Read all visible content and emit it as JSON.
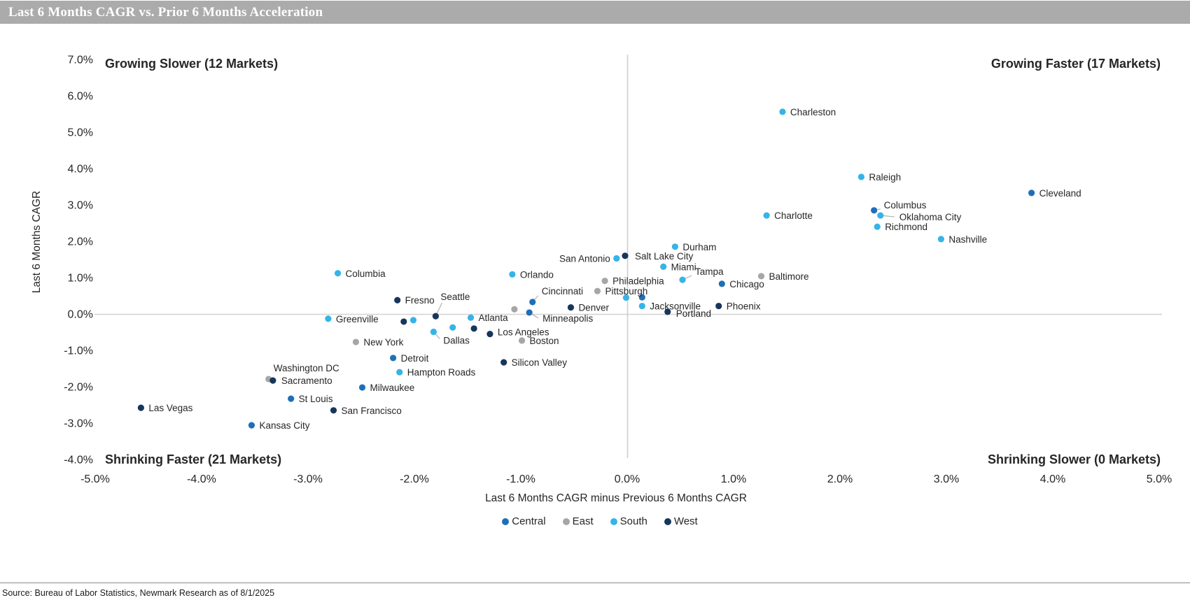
{
  "title_bar": {
    "text": "Last 6 Months CAGR vs. Prior 6 Months Acceleration",
    "bg": "#ABABAB",
    "fg": "#FFFFFF"
  },
  "source": {
    "text": "Source: Bureau of Labor Statistics, Newmark Research as of 8/1/2025"
  },
  "chart_data": {
    "type": "scatter",
    "title": "Last 6 Months CAGR vs. Prior 6 Months Acceleration",
    "xlabel": "Last 6 Months CAGR minus Previous 6 Months CAGR",
    "ylabel": "Last 6 Months CAGR",
    "xlim": [
      -5,
      5
    ],
    "ylim": [
      -4,
      7
    ],
    "grid": "only zero axes",
    "x_ticks": [
      {
        "v": -5,
        "label": "-5.0%"
      },
      {
        "v": -4,
        "label": "-4.0%"
      },
      {
        "v": -3,
        "label": "-3.0%"
      },
      {
        "v": -2,
        "label": "-2.0%"
      },
      {
        "v": -1,
        "label": "-1.0%"
      },
      {
        "v": 0,
        "label": "0.0%"
      },
      {
        "v": 1,
        "label": "1.0%"
      },
      {
        "v": 2,
        "label": "2.0%"
      },
      {
        "v": 3,
        "label": "3.0%"
      },
      {
        "v": 4,
        "label": "4.0%"
      },
      {
        "v": 5,
        "label": "5.0%"
      }
    ],
    "y_ticks": [
      {
        "v": 7,
        "label": "7.0%"
      },
      {
        "v": 6,
        "label": "6.0%"
      },
      {
        "v": 5,
        "label": "5.0%"
      },
      {
        "v": 4,
        "label": "4.0%"
      },
      {
        "v": 3,
        "label": "3.0%"
      },
      {
        "v": 2,
        "label": "2.0%"
      },
      {
        "v": 1,
        "label": "1.0%"
      },
      {
        "v": 0,
        "label": "0.0%"
      },
      {
        "v": -1,
        "label": "-1.0%"
      },
      {
        "v": -2,
        "label": "-2.0%"
      },
      {
        "v": -3,
        "label": "-3.0%"
      },
      {
        "v": -4,
        "label": "-4.0%"
      }
    ],
    "quadrant_labels": {
      "top_left": "Growing Slower (12 Markets)",
      "top_right": "Growing Faster (17 Markets)",
      "bottom_left": "Shrinking Faster (21 Markets)",
      "bottom_right": "Shrinking Slower (0 Markets)"
    },
    "legend": {
      "position": "bottom-center",
      "items": [
        {
          "name": "Central",
          "color": "#1F6FB8"
        },
        {
          "name": "East",
          "color": "#A6A6A6"
        },
        {
          "name": "South",
          "color": "#35B4E8"
        },
        {
          "name": "West",
          "color": "#17365D"
        }
      ]
    },
    "series": [
      {
        "name": "East",
        "color": "#A6A6A6",
        "points": [
          {
            "city": "Baltimore",
            "x": 1.26,
            "y": 1.04
          },
          {
            "city": "Philadelphia",
            "x": -0.21,
            "y": 0.91
          },
          {
            "city": "Pittsburgh",
            "x": -0.28,
            "y": 0.63
          },
          {
            "city": "New York",
            "x": -2.55,
            "y": -0.77
          },
          {
            "city": "Boston",
            "x": -0.99,
            "y": -0.73
          },
          {
            "city": "Washington DC",
            "x": -3.37,
            "y": -1.79,
            "dx": 7,
            "dy": -11
          },
          {
            "city": "",
            "x": -1.06,
            "y": 0.13
          }
        ]
      },
      {
        "name": "South",
        "color": "#35B4E8",
        "points": [
          {
            "city": "Charleston",
            "x": 1.46,
            "y": 5.56
          },
          {
            "city": "Raleigh",
            "x": 2.2,
            "y": 3.77
          },
          {
            "city": "Charlotte",
            "x": 1.31,
            "y": 2.71
          },
          {
            "city": "Oklahoma City",
            "x": 2.38,
            "y": 2.71,
            "dx": 27,
            "dy": 7,
            "leader": [
              20,
              2
            ]
          },
          {
            "city": "Richmond",
            "x": 2.35,
            "y": 2.4
          },
          {
            "city": "Nashville",
            "x": 2.95,
            "y": 2.06
          },
          {
            "city": "Durham",
            "x": 0.45,
            "y": 1.85
          },
          {
            "city": "San Antonio",
            "x": -0.1,
            "y": 1.53,
            "anchor": "end",
            "dx": -9,
            "dy": 5
          },
          {
            "city": "Miami",
            "x": 0.34,
            "y": 1.3
          },
          {
            "city": "Tampa",
            "x": 0.52,
            "y": 0.94,
            "dx": 18,
            "dy": -7,
            "leader": [
              13,
              -6
            ]
          },
          {
            "city": "Columbia",
            "x": -2.72,
            "y": 1.12
          },
          {
            "city": "Orlando",
            "x": -1.08,
            "y": 1.09
          },
          {
            "city": "Jacksonville",
            "x": 0.14,
            "y": 0.22
          },
          {
            "city": "Atlanta",
            "x": -1.47,
            "y": -0.1
          },
          {
            "city": "Greenville",
            "x": -2.81,
            "y": -0.13
          },
          {
            "city": "Dallas",
            "x": -1.82,
            "y": -0.49,
            "dx": 14,
            "dy": 17,
            "leader": [
              9,
              10
            ]
          },
          {
            "city": "Hampton Roads",
            "x": -2.14,
            "y": -1.6
          },
          {
            "city": "",
            "x": -0.01,
            "y": 0.45
          },
          {
            "city": "",
            "x": -2.01,
            "y": -0.17
          },
          {
            "city": "",
            "x": -1.64,
            "y": -0.37
          }
        ]
      },
      {
        "name": "Central",
        "color": "#1F6FB8",
        "points": [
          {
            "city": "Cleveland",
            "x": 3.8,
            "y": 3.33
          },
          {
            "city": "Columbus",
            "x": 2.32,
            "y": 2.85,
            "dx": 14,
            "dy": -3,
            "leader": [
              9,
              -2
            ]
          },
          {
            "city": "Chicago",
            "x": 0.89,
            "y": 0.83
          },
          {
            "city": "Cincinnati",
            "x": -0.89,
            "y": 0.33,
            "dx": 13,
            "dy": -11,
            "leader": [
              8,
              -9
            ]
          },
          {
            "city": "Minneapolis",
            "x": -0.92,
            "y": 0.04,
            "dx": 19,
            "dy": 13,
            "leader": [
              13,
              8
            ]
          },
          {
            "city": "Detroit",
            "x": -2.2,
            "y": -1.21
          },
          {
            "city": "Milwaukee",
            "x": -2.49,
            "y": -2.02
          },
          {
            "city": "St Louis",
            "x": -3.16,
            "y": -2.33
          },
          {
            "city": "Kansas City",
            "x": -3.53,
            "y": -3.06
          },
          {
            "city": "",
            "x": 0.14,
            "y": 0.46
          }
        ]
      },
      {
        "name": "West",
        "color": "#17365D",
        "points": [
          {
            "city": "Salt Lake City",
            "x": -0.02,
            "y": 1.6,
            "dx": 14,
            "dy": 5
          },
          {
            "city": "Fresno",
            "x": -2.16,
            "y": 0.38
          },
          {
            "city": "Seattle",
            "x": -1.8,
            "y": -0.06,
            "dx": 7,
            "dy": -23,
            "leader": [
              9,
              -19
            ]
          },
          {
            "city": "Denver",
            "x": -0.53,
            "y": 0.18
          },
          {
            "city": "Portland",
            "x": 0.38,
            "y": 0.06,
            "dx": 12,
            "dy": 7
          },
          {
            "city": "Phoenix",
            "x": 0.86,
            "y": 0.22
          },
          {
            "city": "Los Angeles",
            "x": -1.29,
            "y": -0.55,
            "dx": 11,
            "dy": 2
          },
          {
            "city": "Silicon Valley",
            "x": -1.16,
            "y": -1.33
          },
          {
            "city": "Sacramento",
            "x": -3.33,
            "y": -1.83,
            "dx": 12,
            "dy": 5
          },
          {
            "city": "San Francisco",
            "x": -2.76,
            "y": -2.65
          },
          {
            "city": "Las Vegas",
            "x": -4.57,
            "y": -2.58
          },
          {
            "city": "",
            "x": -2.1,
            "y": -0.21
          },
          {
            "city": "",
            "x": -1.44,
            "y": -0.4
          }
        ]
      }
    ]
  }
}
